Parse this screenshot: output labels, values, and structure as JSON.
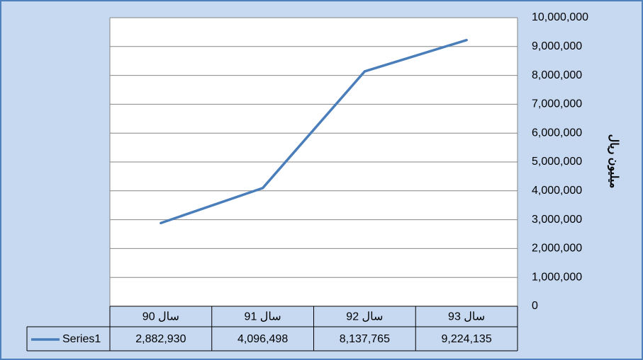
{
  "chart_data": {
    "type": "line",
    "categories": [
      "سال 90",
      "سال 91",
      "سال 92",
      "سال 93"
    ],
    "series": [
      {
        "name": "Series1",
        "color": "#4a7ebb",
        "values": [
          2882930,
          4096498,
          8137765,
          9224135
        ],
        "value_labels": [
          "2,882,930",
          "4,096,498",
          "8,137,765",
          "9,224,135"
        ]
      }
    ],
    "ylim": [
      0,
      10000000
    ],
    "yticks": [
      0,
      {
        "value": 1000000,
        "label": "1,000,000"
      },
      {
        "value": 2000000,
        "label": "2,000,000"
      },
      {
        "value": 3000000,
        "label": "3,000,000"
      },
      {
        "value": 4000000,
        "label": "4,000,000"
      },
      {
        "value": 5000000,
        "label": "5,000,000"
      },
      {
        "value": 6000000,
        "label": "6,000,000"
      },
      {
        "value": 7000000,
        "label": "7,000,000"
      },
      {
        "value": 8000000,
        "label": "8,000,000"
      },
      {
        "value": 9000000,
        "label": "9,000,000"
      },
      {
        "value": 10000000,
        "label": "10,000,000"
      }
    ],
    "y_axis_label": "میلیون ریال",
    "y_axis_position": "right",
    "grid": true,
    "data_table": true
  }
}
